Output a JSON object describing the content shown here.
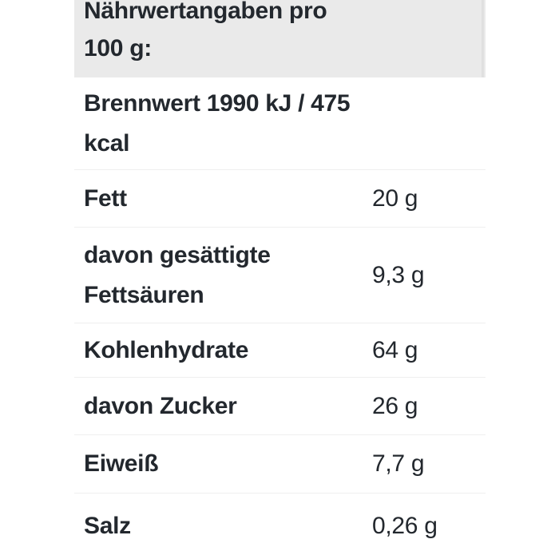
{
  "table": {
    "header_title": "Nährwertangaben pro\n100 g:",
    "rows": [
      {
        "label": "Brennwert 1990 kJ / 475\nkcal",
        "value": ""
      },
      {
        "label": "Fett",
        "value": "20 g"
      },
      {
        "label": "davon gesättigte\nFettsäuren",
        "value": "9,3 g"
      },
      {
        "label": "Kohlenhydrate",
        "value": "64 g"
      },
      {
        "label": "davon Zucker",
        "value": "26 g"
      },
      {
        "label": "Eiweiß",
        "value": "7,7 g"
      },
      {
        "label": "Salz",
        "value": "0,26 g"
      }
    ],
    "colors": {
      "header_background": "#eaeaea",
      "text": "#23282e",
      "separator": "#efefef",
      "header_edge": "#e0e0e0",
      "page_background": "#ffffff"
    }
  }
}
